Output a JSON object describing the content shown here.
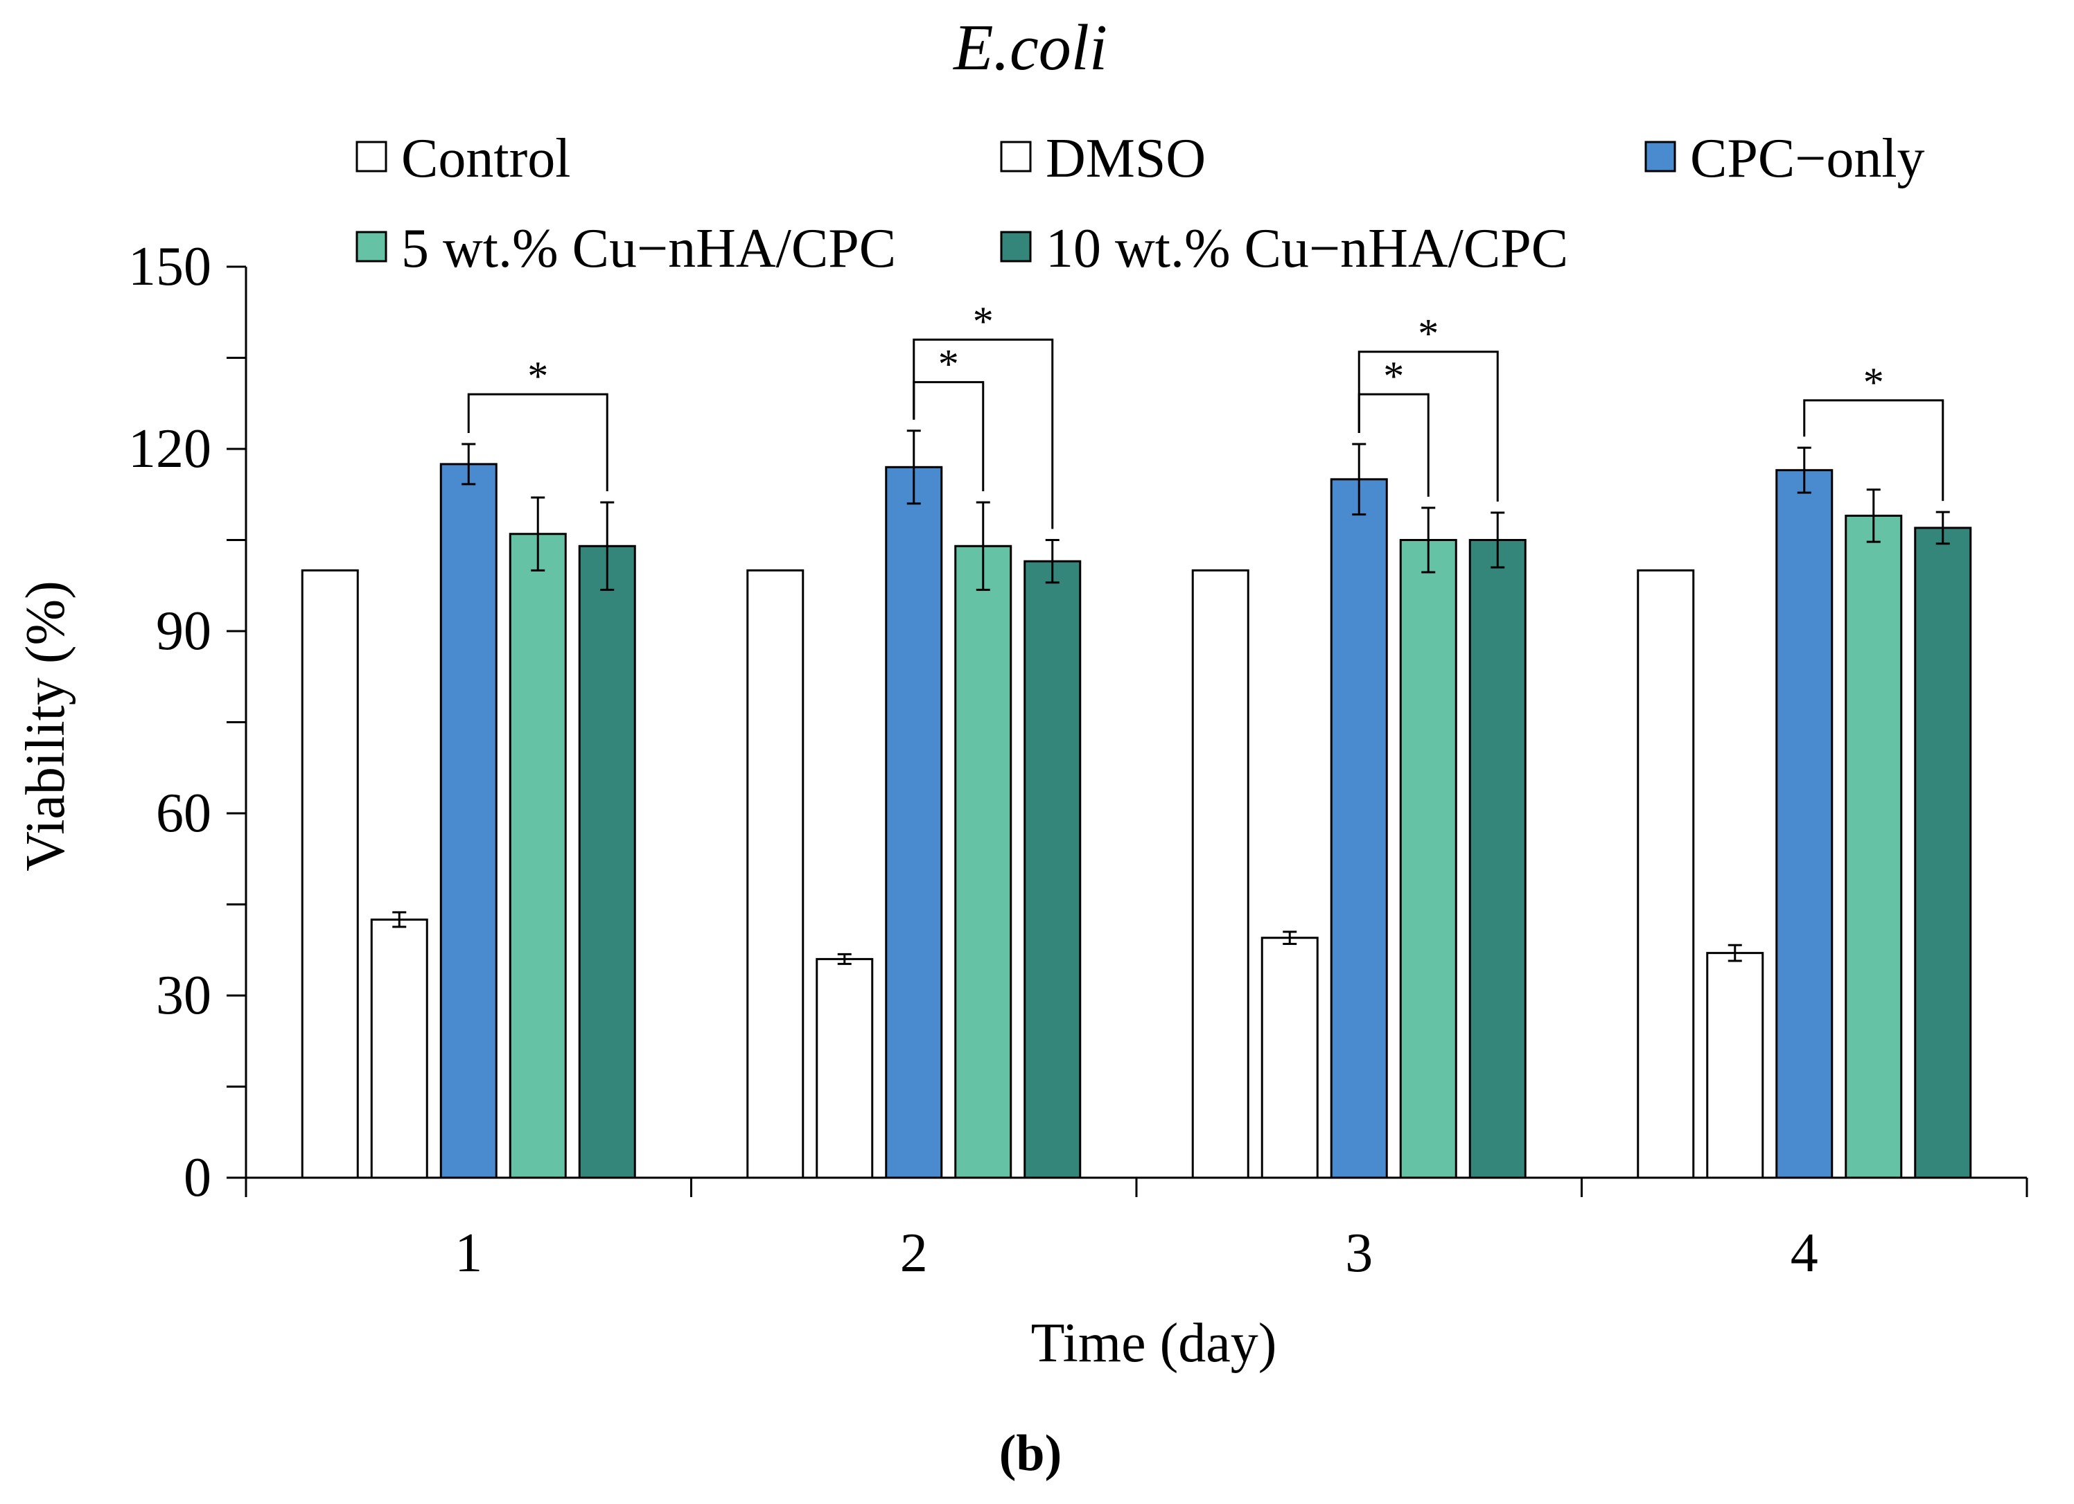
{
  "chart_data": {
    "type": "bar",
    "title": "E.coli",
    "panel_label": "(b)",
    "xlabel": "Time (day)",
    "ylabel": "Viability (%)",
    "ylim": [
      0,
      150
    ],
    "yticks": [
      0,
      30,
      60,
      90,
      120,
      150
    ],
    "categories": [
      "1",
      "2",
      "3",
      "4"
    ],
    "grid": false,
    "legend_position": "top",
    "series": [
      {
        "name": "Control",
        "color": "#ffffff",
        "values": [
          100,
          100,
          100,
          100
        ],
        "errors": [
          0,
          0,
          0,
          0
        ]
      },
      {
        "name": "DMSO",
        "color": "#ffffff",
        "values": [
          42.5,
          36,
          39.5,
          37
        ],
        "errors": [
          1.2,
          0.8,
          1.0,
          1.3
        ]
      },
      {
        "name": "CPC−only",
        "color": "#4a8bd0",
        "values": [
          117.5,
          117,
          115,
          116.5
        ],
        "errors": [
          3.3,
          6.0,
          5.8,
          3.7
        ]
      },
      {
        "name": "5 wt.% Cu−nHA/CPC",
        "color": "#66c2a5",
        "values": [
          106,
          104,
          105,
          109
        ],
        "errors": [
          6.0,
          7.2,
          5.3,
          4.3
        ]
      },
      {
        "name": "10 wt.% Cu−nHA/CPC",
        "color": "#35867a",
        "values": [
          104,
          101.5,
          105,
          107
        ],
        "errors": [
          7.2,
          3.5,
          4.5,
          2.6
        ]
      }
    ],
    "significance": [
      {
        "group": 0,
        "from_series": 2,
        "to_series": 4,
        "bracket_y": 129,
        "label": "*"
      },
      {
        "group": 1,
        "from_series": 2,
        "to_series": 3,
        "bracket_y": 131,
        "label": "*"
      },
      {
        "group": 1,
        "from_series": 2,
        "to_series": 4,
        "bracket_y": 138,
        "label": "*"
      },
      {
        "group": 2,
        "from_series": 2,
        "to_series": 3,
        "bracket_y": 129,
        "label": "*"
      },
      {
        "group": 2,
        "from_series": 2,
        "to_series": 4,
        "bracket_y": 136,
        "label": "*"
      },
      {
        "group": 3,
        "from_series": 2,
        "to_series": 4,
        "bracket_y": 128,
        "label": "*"
      }
    ]
  }
}
